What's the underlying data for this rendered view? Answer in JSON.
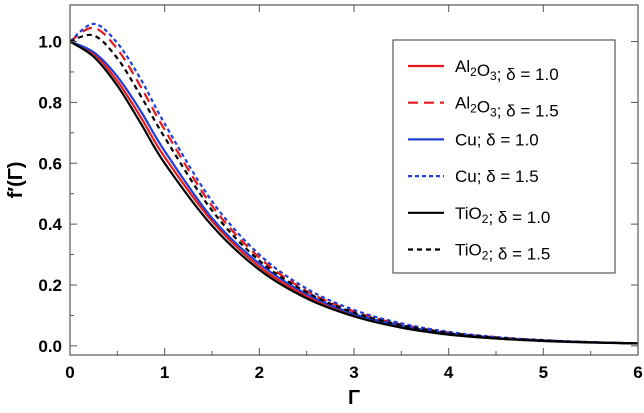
{
  "chart_data": {
    "type": "line",
    "title": "",
    "xlabel": "Γ",
    "ylabel": "f′(Γ)",
    "xlim": [
      0,
      6
    ],
    "ylim": [
      -0.03,
      1.12
    ],
    "xticks": [
      0,
      1,
      2,
      3,
      4,
      5,
      6
    ],
    "xtick_labels": [
      "0",
      "1",
      "2",
      "3",
      "4",
      "5",
      "6"
    ],
    "yticks": [
      0.0,
      0.2,
      0.4,
      0.6,
      0.8,
      1.0
    ],
    "ytick_labels": [
      "0.0",
      "0.2",
      "0.4",
      "0.6",
      "0.8",
      "1.0"
    ],
    "grid": false,
    "legend_position": "top-right",
    "x": [
      0,
      0.25,
      0.5,
      0.75,
      1.0,
      1.5,
      2.0,
      2.5,
      3.0,
      3.5,
      4.0,
      4.5,
      5.0,
      5.5,
      6.0
    ],
    "series": [
      {
        "name": "Al2O3; δ = 1.0",
        "name_parts": [
          "Al",
          "2",
          "O",
          "3",
          "; δ = 1.0"
        ],
        "color": "#e41a1c",
        "dash": "solid",
        "values": [
          1.0,
          0.96,
          0.87,
          0.75,
          0.62,
          0.41,
          0.26,
          0.163,
          0.1,
          0.062,
          0.039,
          0.025,
          0.017,
          0.012,
          0.008
        ]
      },
      {
        "name": "Al2O3; δ = 1.5",
        "name_parts": [
          "Al",
          "2",
          "O",
          "3",
          "; δ = 1.5"
        ],
        "color": "#e41a1c",
        "dash": "dashed",
        "values": [
          1.0,
          1.045,
          0.975,
          0.85,
          0.71,
          0.46,
          0.29,
          0.18,
          0.113,
          0.07,
          0.044,
          0.028,
          0.018,
          0.012,
          0.008
        ]
      },
      {
        "name": "Cu; δ = 1.0",
        "name_parts": [
          "Cu",
          "",
          "",
          "",
          "; δ = 1.0"
        ],
        "color": "#1f3fd6",
        "dash": "solid",
        "values": [
          1.0,
          0.965,
          0.885,
          0.77,
          0.64,
          0.42,
          0.27,
          0.17,
          0.105,
          0.066,
          0.041,
          0.026,
          0.017,
          0.012,
          0.008
        ]
      },
      {
        "name": "Cu; δ = 1.5",
        "name_parts": [
          "Cu",
          "",
          "",
          "",
          "; δ = 1.5"
        ],
        "color": "#1f3fd6",
        "dash": "dotted",
        "values": [
          1.0,
          1.058,
          0.995,
          0.875,
          0.73,
          0.475,
          0.3,
          0.188,
          0.118,
          0.074,
          0.046,
          0.029,
          0.019,
          0.012,
          0.008
        ]
      },
      {
        "name": "TiO2; δ = 1.0",
        "name_parts": [
          "TiO",
          "2",
          "",
          "",
          "; δ = 1.0"
        ],
        "color": "#000000",
        "dash": "solid",
        "values": [
          1.0,
          0.95,
          0.855,
          0.73,
          0.6,
          0.395,
          0.25,
          0.156,
          0.097,
          0.06,
          0.037,
          0.024,
          0.016,
          0.011,
          0.008
        ]
      },
      {
        "name": "TiO2; δ = 1.5",
        "name_parts": [
          "TiO",
          "2",
          "",
          "",
          "; δ = 1.5"
        ],
        "color": "#000000",
        "dash": "dashed-short",
        "values": [
          1.0,
          1.02,
          0.945,
          0.82,
          0.685,
          0.445,
          0.28,
          0.176,
          0.109,
          0.068,
          0.042,
          0.027,
          0.018,
          0.012,
          0.008
        ]
      }
    ]
  }
}
